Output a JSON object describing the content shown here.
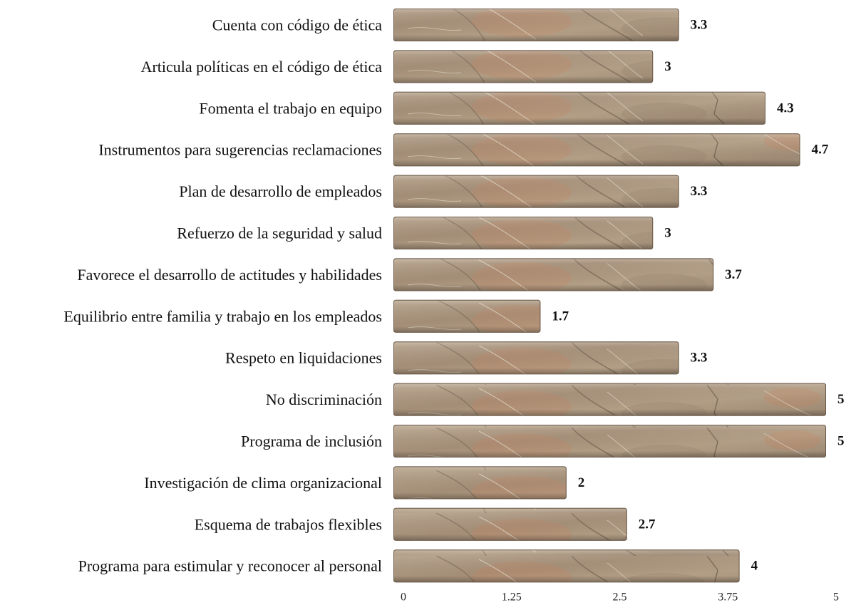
{
  "chart_data": {
    "type": "bar",
    "orientation": "horizontal",
    "categories": [
      "Cuenta con código de ética",
      "Articula políticas en el código de ética",
      "Fomenta el trabajo en equipo",
      "Instrumentos para sugerencias reclamaciones",
      "Plan de desarrollo de empleados",
      "Refuerzo de la seguridad y salud",
      "Favorece el  desarrollo de actitudes y habilidades",
      "Equilibrio entre familia y trabajo en los empleados",
      "Respeto en liquidaciones",
      "No discriminación",
      "Programa de inclusión",
      "Investigación de clima organizacional",
      "Esquema de trabajos flexibles",
      "Programa para estimular y reconocer al personal"
    ],
    "values": [
      3.3,
      3,
      4.3,
      4.7,
      3.3,
      3,
      3.7,
      1.7,
      3.3,
      5,
      5,
      2,
      2.7,
      4
    ],
    "value_labels": [
      "3.3",
      "3",
      "4.3",
      "4.7",
      "3.3",
      "3",
      "3.7",
      "1.7",
      "3.3",
      "5",
      "5",
      "2",
      "2.7",
      "4"
    ],
    "xlim": [
      0,
      5
    ],
    "x_ticks": [
      0,
      1.25,
      2.5,
      3.75,
      5
    ],
    "x_tick_labels": [
      "0",
      "1.25",
      "2.5",
      "3.75",
      "5"
    ],
    "grid": false,
    "legend": "none",
    "bar_fill": "stone-texture",
    "colors": {
      "bar_base": "#a8927a",
      "bar_light": "#c2b09a",
      "bar_dark": "#7d6a58",
      "bar_rust": "#c9805a",
      "bar_border": "#6b5a48",
      "text": "#111111"
    }
  }
}
